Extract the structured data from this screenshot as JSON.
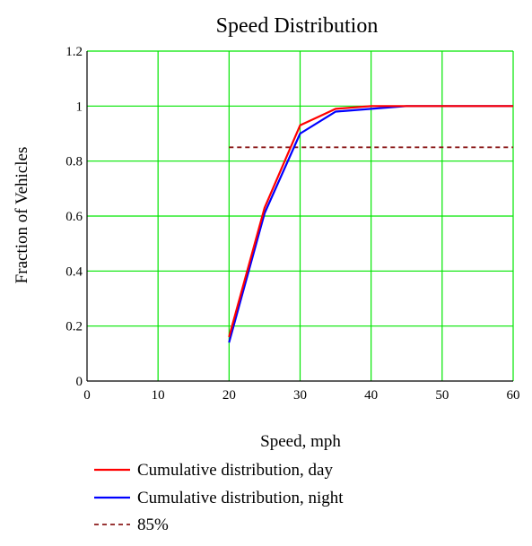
{
  "chart_data": {
    "type": "line",
    "title": "Speed Distribution",
    "xlabel": "Speed, mph",
    "ylabel": "Fraction of Vehicles",
    "xlim": [
      0,
      60
    ],
    "ylim": [
      0,
      1.2
    ],
    "x_ticks": [
      "0",
      "10",
      "20",
      "30",
      "40",
      "50",
      "60"
    ],
    "y_ticks": [
      "0",
      "0.2",
      "0.4",
      "0.6",
      "0.8",
      "1",
      "1.2"
    ],
    "grid": true,
    "grid_color": "#00e600",
    "legend_position": "bottom",
    "series": [
      {
        "name": "Cumulative distribution, day",
        "color": "#ff0000",
        "style": "solid",
        "x": [
          20,
          25,
          30,
          35,
          40,
          45,
          50,
          55,
          60
        ],
        "y": [
          0.16,
          0.63,
          0.93,
          0.99,
          1.0,
          1.0,
          1.0,
          1.0,
          1.0
        ]
      },
      {
        "name": "Cumulative distribution, night",
        "color": "#0000ff",
        "style": "solid",
        "x": [
          20,
          25,
          30,
          35,
          40,
          45,
          50,
          55,
          60
        ],
        "y": [
          0.14,
          0.61,
          0.9,
          0.98,
          0.99,
          1.0,
          1.0,
          1.0,
          1.0
        ]
      },
      {
        "name": "85%",
        "color": "#8b1a1a",
        "style": "dashed",
        "x": [
          20,
          60
        ],
        "y": [
          0.85,
          0.85
        ]
      }
    ]
  }
}
